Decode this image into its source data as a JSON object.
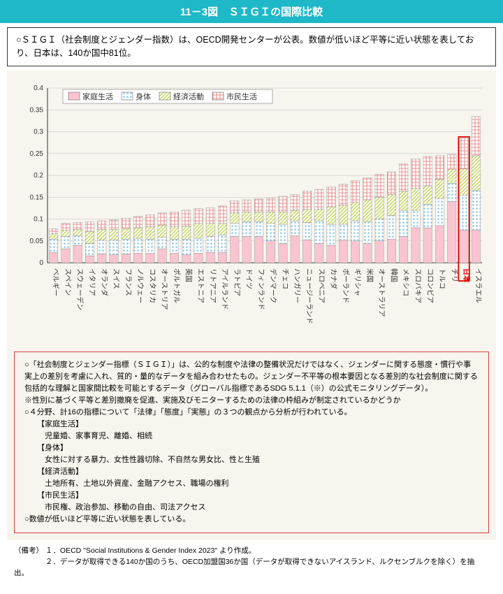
{
  "title": "11－3図　ＳＩＧＩの国際比較",
  "intro": "○ＳＩＧＩ（社会制度とジェンダー指数）は、OECD開発センターが公表。数値が低いほど平等に近い状態を表しており、日本は、140か国中81位。",
  "chart": {
    "type": "stacked-bar",
    "ylim": [
      0,
      0.4
    ],
    "ytick_step": 0.05,
    "background_color": "#f7f5ed",
    "grid_color": "#bdbdbd",
    "axis_color": "#333333",
    "label_fontsize": 10,
    "yaxis_fontsize": 10,
    "legend": [
      {
        "label": "家庭生活",
        "color": "#f9c5d1",
        "pattern": "solid"
      },
      {
        "label": "身体",
        "color": "#8fc7e8",
        "pattern": "dots"
      },
      {
        "label": "経済活動",
        "color": "#c8d96a",
        "pattern": "hatch"
      },
      {
        "label": "市民生活",
        "color": "#e89090",
        "pattern": "grid"
      }
    ],
    "highlight_country": "日本",
    "highlight_color": "#e00000",
    "countries": [
      "ベルギー",
      "スペイン",
      "スウェーデン",
      "イタリア",
      "オランダ",
      "スイス",
      "フランス",
      "ノルウェー",
      "コスタリカ",
      "オーストリア",
      "ポルトガル",
      "英国",
      "エストニア",
      "リトアニア",
      "アイルランド",
      "ラトビア",
      "ドイツ",
      "フィンランド",
      "デンマーク",
      "チェコ",
      "ハンガリー",
      "ニュージーランド",
      "スロベニア",
      "カナダ",
      "ポーランド",
      "ギリシャ",
      "米国",
      "オーストラリア",
      "韓国",
      "メキシコ",
      "スロバキア",
      "コロンビア",
      "トルコ",
      "チリ",
      "日本",
      "イスラエル"
    ],
    "series": {
      "family": [
        0.024,
        0.032,
        0.04,
        0.016,
        0.02,
        0.018,
        0.02,
        0.022,
        0.022,
        0.032,
        0.022,
        0.018,
        0.022,
        0.024,
        0.024,
        0.06,
        0.06,
        0.06,
        0.05,
        0.044,
        0.062,
        0.052,
        0.044,
        0.04,
        0.052,
        0.05,
        0.044,
        0.05,
        0.054,
        0.06,
        0.08,
        0.08,
        0.085,
        0.14,
        0.075,
        0.075
      ],
      "body": [
        0.03,
        0.028,
        0.022,
        0.028,
        0.032,
        0.034,
        0.034,
        0.034,
        0.032,
        0.026,
        0.032,
        0.036,
        0.034,
        0.036,
        0.04,
        0.03,
        0.034,
        0.034,
        0.04,
        0.044,
        0.034,
        0.04,
        0.052,
        0.048,
        0.036,
        0.046,
        0.05,
        0.05,
        0.054,
        0.06,
        0.04,
        0.054,
        0.062,
        0.042,
        0.08,
        0.09
      ],
      "economy": [
        0.012,
        0.014,
        0.014,
        0.028,
        0.024,
        0.024,
        0.024,
        0.024,
        0.028,
        0.028,
        0.028,
        0.03,
        0.034,
        0.03,
        0.026,
        0.024,
        0.022,
        0.022,
        0.026,
        0.028,
        0.024,
        0.03,
        0.026,
        0.04,
        0.044,
        0.042,
        0.05,
        0.05,
        0.048,
        0.044,
        0.05,
        0.042,
        0.044,
        0.032,
        0.06,
        0.08
      ],
      "civic": [
        0.012,
        0.016,
        0.016,
        0.022,
        0.02,
        0.022,
        0.024,
        0.026,
        0.028,
        0.028,
        0.034,
        0.036,
        0.034,
        0.036,
        0.04,
        0.028,
        0.028,
        0.03,
        0.032,
        0.036,
        0.036,
        0.042,
        0.046,
        0.046,
        0.048,
        0.05,
        0.05,
        0.052,
        0.052,
        0.062,
        0.068,
        0.068,
        0.054,
        0.034,
        0.07,
        0.09
      ]
    }
  },
  "notes": {
    "l1": "○「社会制度とジェンダー指標（ＳＩＧＩ）」は、公的な制度や法律の整備状況だけではなく、ジェンダーに関する態度・慣行や事実上の差別を考慮に入れ、質的・量的なデータを組み合わせたもの。ジェンダー不平等の根本要因となる差別的な社会制度に関する包括的な理解と国家間比較を可能とするデータ（グローバル指標であるSDG 5.1.1（※）の公式モニタリングデータ）。",
    "l2": "※性別に基づく平等と差別撤廃を促進、実施及びモニターするための法律の枠組みが制定されているかどうか",
    "l3": "○４分野、計16の指標について「法律」「態度」「実態」の３つの観点から分析が行われている。",
    "h1": "【家庭生活】",
    "d1": "　児童婚、家事育児、離婚、相続",
    "h2": "【身体】",
    "d2": "　女性に対する暴力、女性性器切除、不自然な男女比、性と生殖",
    "h3": "【経済活動】",
    "d3": "　土地所有、土地以外資産、金融アクセス、職場の権利",
    "h4": "【市民生活】",
    "d4": "　市民権、政治参加、移動の自由、司法アクセス",
    "l4": "○数値が低いほど平等に近い状態を表している。"
  },
  "footer": {
    "prefix": "（備考）",
    "n1": "１．OECD \"Social Institutions & Gender Index 2023\" より作成。",
    "n2": "２．データが取得できる140か国のうち、OECD加盟国36か国（データが取得できないアイスランド、ルクセンブルクを除く）を抽出。"
  }
}
